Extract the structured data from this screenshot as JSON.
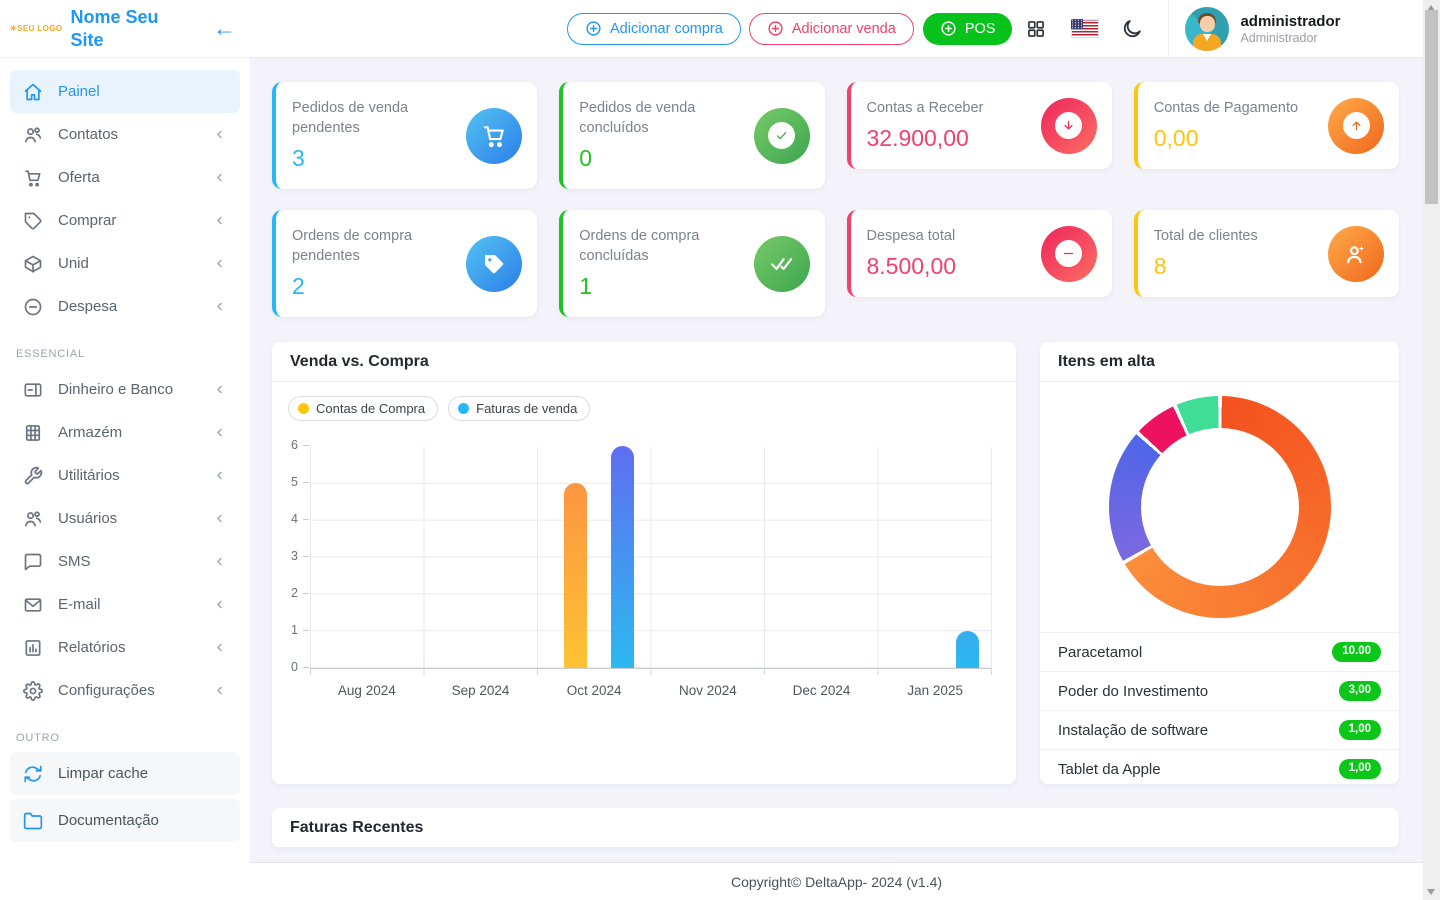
{
  "app": {
    "logo_badge": "✳SEU LOGO",
    "site_name": "Nome Seu Site",
    "footer": "Copyright© DeltaApp- 2024 (v1.4)"
  },
  "topbar": {
    "buttons": [
      {
        "label": "Adicionar compra",
        "icon": "plus-circle-icon",
        "color": "#2196f3"
      },
      {
        "label": "Adicionar venda",
        "icon": "plus-circle-icon",
        "color": "#f1416c"
      },
      {
        "label": "POS",
        "icon": "plus-circle-icon",
        "color": "#07c31b"
      }
    ],
    "icons": [
      "grid-apps-icon",
      "us-flag-icon",
      "dark-mode-moon-icon"
    ],
    "user": {
      "name": "administrador",
      "role": "Administrador",
      "avatar": "man-avatar"
    }
  },
  "sidebar": {
    "sections": [
      {
        "label": "",
        "items": [
          {
            "label": "Painel",
            "icon": "home-icon",
            "active": true
          },
          {
            "label": "Contatos",
            "icon": "contacts-icon",
            "chevron": true
          },
          {
            "label": "Oferta",
            "icon": "cart-icon",
            "chevron": true
          },
          {
            "label": "Comprar",
            "icon": "tag-icon",
            "chevron": true
          },
          {
            "label": "Unid",
            "icon": "package-icon",
            "chevron": true
          },
          {
            "label": "Despesa",
            "icon": "minus-circle-icon",
            "chevron": true
          }
        ]
      },
      {
        "label": "ESSENCIAL",
        "items": [
          {
            "label": "Dinheiro e Banco",
            "icon": "bank-icon",
            "chevron": true
          },
          {
            "label": "Armazém",
            "icon": "warehouse-icon",
            "chevron": true
          },
          {
            "label": "Utilitários",
            "icon": "wrench-icon",
            "chevron": true
          },
          {
            "label": "Usuários",
            "icon": "users-icon",
            "chevron": true
          },
          {
            "label": "SMS",
            "icon": "chat-icon",
            "chevron": true
          },
          {
            "label": "E-mail",
            "icon": "mail-icon",
            "chevron": true
          },
          {
            "label": "Relatórios",
            "icon": "report-icon",
            "chevron": true
          },
          {
            "label": "Configurações",
            "icon": "gear-icon",
            "chevron": true
          }
        ]
      },
      {
        "label": "OUTRO",
        "items": [
          {
            "label": "Limpar cache",
            "icon": "refresh-icon",
            "muted": true
          },
          {
            "label": "Documentação",
            "icon": "folder-icon",
            "muted": true
          }
        ]
      }
    ]
  },
  "stat_cards": [
    {
      "title": "Pedidos de venda pendentes",
      "value": "3",
      "accent": "#29b6f6",
      "icon": "cart-badge-icon",
      "icon_bg": [
        "#55c3f1",
        "#2a7de9"
      ]
    },
    {
      "title": "Pedidos de venda concluídos",
      "value": "0",
      "accent": "#21c224",
      "icon": "check-circle-badge-icon",
      "icon_bg": [
        "#79ca67",
        "#3aa64f"
      ]
    },
    {
      "title": "Contas a Receber",
      "value": "32.900,00",
      "accent": "#f1416c",
      "icon": "arrow-down-badge-icon",
      "icon_bg": [
        "#f0245d",
        "#fb6e63"
      ]
    },
    {
      "title": "Contas de Pagamento",
      "value": "0,00",
      "accent": "#fdc50c",
      "icon": "arrow-up-badge-icon",
      "icon_bg": [
        "#fdaa4a",
        "#f1681c"
      ]
    },
    {
      "title": "Ordens de compra pendentes",
      "value": "2",
      "accent": "#29b6f6",
      "icon": "tag-badge-icon",
      "icon_bg": [
        "#55c3f1",
        "#2a7de9"
      ]
    },
    {
      "title": "Ordens de compra concluídas",
      "value": "1",
      "accent": "#21c224",
      "icon": "double-check-badge-icon",
      "icon_bg": [
        "#79ca67",
        "#3aa64f"
      ]
    },
    {
      "title": "Despesa total",
      "value": "8.500,00",
      "accent": "#f1416c",
      "icon": "minus-badge-icon",
      "icon_bg": [
        "#f0245d",
        "#fb6e63"
      ]
    },
    {
      "title": "Total de clientes",
      "value": "8",
      "accent": "#fdc50c",
      "icon": "clients-badge-icon",
      "icon_bg": [
        "#fdaa4a",
        "#f1681c"
      ]
    }
  ],
  "chart_data": [
    {
      "type": "bar",
      "title": "Venda vs. Compra",
      "categories": [
        "Aug 2024",
        "Sep 2024",
        "Oct 2024",
        "Nov 2024",
        "Dec 2024",
        "Jan 2025"
      ],
      "series": [
        {
          "name": "Contas de Compra",
          "values": [
            0,
            0,
            5,
            0,
            0,
            0
          ],
          "color_top": "#fb8c44",
          "color_bottom": "#fdc233",
          "legend_dot": "#fdc60a"
        },
        {
          "name": "Faturas de venda",
          "values": [
            0,
            0,
            6,
            0,
            0,
            1
          ],
          "color_top": "#5f6ef0",
          "color_bottom": "#2cb9f0",
          "legend_dot": "#29b6f6"
        }
      ],
      "ylim": [
        0,
        6
      ],
      "yticks": [
        0,
        1,
        2,
        3,
        4,
        5,
        6
      ],
      "grid": true,
      "legend_position": "top-left"
    },
    {
      "type": "pie",
      "donut": true,
      "title": "Itens em alta",
      "labels": [
        "Paracetamol",
        "Poder do Investimento",
        "Instalação de software",
        "Tablet da Apple"
      ],
      "values": [
        10,
        3,
        1,
        1
      ],
      "display_values": [
        "10.00",
        "3,00",
        "1,00",
        "1,00"
      ],
      "badge_color": "#0cc61a",
      "segment_colors": [
        [
          "#f4511e",
          "#fb8e3a"
        ],
        [
          "#7b68e0",
          "#4f66e8"
        ],
        [
          "#ec125f",
          "#ec125f"
        ],
        [
          "#3fdd96",
          "#3fdd96"
        ]
      ]
    }
  ],
  "recent_invoices": {
    "title": "Faturas Recentes"
  }
}
